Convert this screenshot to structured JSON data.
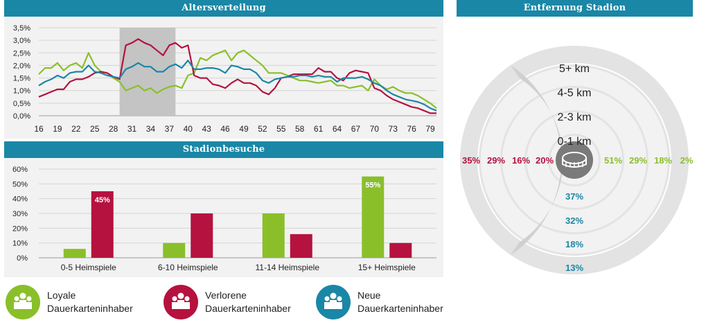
{
  "colors": {
    "header": "#1a87a6",
    "panel": "#f2f2f2",
    "loyal": "#8abf2a",
    "lost": "#b5123f",
    "new": "#1a87a6",
    "highlight": "#c4c4c4"
  },
  "age_panel": {
    "title": "Altersverteilung"
  },
  "visits_panel": {
    "title": "Stadionbesuche"
  },
  "distance_panel": {
    "title": "Entfernung Stadion"
  },
  "legend": {
    "items": [
      {
        "line1": "Loyale",
        "line2": "Dauerkarteninhaber",
        "color": "#8abf2a",
        "icon": "people-group-icon"
      },
      {
        "line1": "Verlorene",
        "line2": "Dauerkarteninhaber",
        "color": "#b5123f",
        "icon": "people-group-icon"
      },
      {
        "line1": "Neue",
        "line2": "Dauerkarteninhaber",
        "color": "#1a87a6",
        "icon": "people-group-icon"
      }
    ]
  },
  "chart_data": [
    {
      "type": "line",
      "title": "Altersverteilung",
      "x": [
        16,
        17,
        18,
        19,
        20,
        21,
        22,
        23,
        24,
        25,
        26,
        27,
        28,
        29,
        30,
        31,
        32,
        33,
        34,
        35,
        36,
        37,
        38,
        39,
        40,
        41,
        42,
        43,
        44,
        45,
        46,
        47,
        48,
        49,
        50,
        51,
        52,
        53,
        54,
        55,
        56,
        57,
        58,
        59,
        60,
        61,
        62,
        63,
        64,
        65,
        66,
        67,
        68,
        69,
        70,
        71,
        72,
        73,
        74,
        75,
        76,
        77,
        78,
        79,
        80
      ],
      "x_tick_labels": [
        "16",
        "19",
        "22",
        "25",
        "28",
        "31",
        "34",
        "37",
        "40",
        "43",
        "46",
        "49",
        "52",
        "55",
        "58",
        "61",
        "64",
        "67",
        "70",
        "73",
        "76",
        "79"
      ],
      "ylim": [
        0,
        3.5
      ],
      "y_tick_labels": [
        "0,0%",
        "0,5%",
        "1,0%",
        "1,5%",
        "2,0%",
        "2,5%",
        "3,0%",
        "3,5%"
      ],
      "highlight_range": [
        29,
        38
      ],
      "grid": true,
      "series": [
        {
          "key": "loyal",
          "values": [
            1.65,
            1.9,
            1.9,
            2.1,
            1.8,
            2.0,
            2.1,
            1.9,
            2.5,
            2.0,
            1.75,
            1.7,
            1.5,
            1.35,
            1.0,
            1.1,
            1.2,
            1.0,
            1.1,
            0.9,
            1.05,
            1.15,
            1.2,
            1.1,
            1.6,
            1.7,
            2.3,
            2.2,
            2.4,
            2.5,
            2.6,
            2.2,
            2.5,
            2.6,
            2.4,
            2.2,
            2.0,
            1.7,
            1.7,
            1.7,
            1.6,
            1.5,
            1.4,
            1.4,
            1.35,
            1.3,
            1.35,
            1.4,
            1.2,
            1.2,
            1.1,
            1.15,
            1.2,
            1.0,
            1.45,
            1.2,
            1.05,
            1.15,
            1.0,
            0.9,
            0.9,
            0.8,
            0.65,
            0.5,
            0.3
          ]
        },
        {
          "key": "lost",
          "values": [
            0.75,
            0.85,
            0.95,
            1.05,
            1.05,
            1.35,
            1.45,
            1.45,
            1.55,
            1.7,
            1.75,
            1.7,
            1.55,
            1.45,
            2.8,
            2.9,
            3.05,
            2.9,
            2.8,
            2.6,
            2.4,
            2.8,
            2.9,
            2.7,
            2.8,
            1.6,
            1.5,
            1.5,
            1.25,
            1.2,
            1.1,
            1.3,
            1.45,
            1.3,
            1.3,
            1.2,
            0.95,
            0.85,
            1.1,
            1.5,
            1.55,
            1.65,
            1.65,
            1.65,
            1.65,
            1.9,
            1.75,
            1.75,
            1.5,
            1.4,
            1.7,
            1.8,
            1.75,
            1.7,
            1.1,
            1.0,
            0.8,
            0.65,
            0.55,
            0.45,
            0.35,
            0.3,
            0.2,
            0.1,
            0.1
          ]
        },
        {
          "key": "new",
          "values": [
            1.2,
            1.35,
            1.45,
            1.6,
            1.5,
            1.7,
            1.75,
            1.75,
            2.0,
            1.75,
            1.7,
            1.6,
            1.55,
            1.5,
            1.85,
            1.95,
            2.1,
            1.95,
            1.95,
            1.75,
            1.75,
            1.95,
            2.05,
            1.9,
            2.2,
            1.85,
            1.85,
            1.9,
            1.9,
            1.85,
            1.7,
            2.0,
            1.95,
            1.85,
            1.85,
            1.7,
            1.4,
            1.3,
            1.45,
            1.5,
            1.55,
            1.55,
            1.6,
            1.6,
            1.55,
            1.6,
            1.55,
            1.55,
            1.35,
            1.5,
            1.5,
            1.5,
            1.55,
            1.45,
            1.3,
            1.2,
            1.0,
            0.85,
            0.75,
            0.65,
            0.6,
            0.55,
            0.45,
            0.3,
            0.2
          ]
        }
      ]
    },
    {
      "type": "bar",
      "title": "Stadionbesuche",
      "categories": [
        "0-5 Heimspiele",
        "6-10 Heimspiele",
        "11-14 Heimspiele",
        "15+ Heimspiele"
      ],
      "ylim": [
        0,
        60
      ],
      "y_tick_labels": [
        "0%",
        "10%",
        "20%",
        "30%",
        "40%",
        "50%",
        "60%"
      ],
      "grid": true,
      "series": [
        {
          "key": "loyal",
          "values": [
            6,
            10,
            30,
            55
          ]
        },
        {
          "key": "lost",
          "values": [
            45,
            30,
            16,
            10
          ]
        }
      ],
      "data_labels": [
        {
          "series": "lost",
          "category": "0-5 Heimspiele",
          "text": "45%"
        },
        {
          "series": "loyal",
          "category": "15+ Heimspiele",
          "text": "55%"
        }
      ]
    },
    {
      "type": "table",
      "title": "Entfernung Stadion",
      "rings": [
        "0-1 km",
        "2-3 km",
        "4-5 km",
        "5+ km"
      ],
      "lost_labels": [
        "20%",
        "16%",
        "29%",
        "35%"
      ],
      "loyal_labels": [
        "51%",
        "29%",
        "18%",
        "2%"
      ],
      "new_labels": [
        "37%",
        "32%",
        "18%",
        "13%"
      ]
    }
  ]
}
